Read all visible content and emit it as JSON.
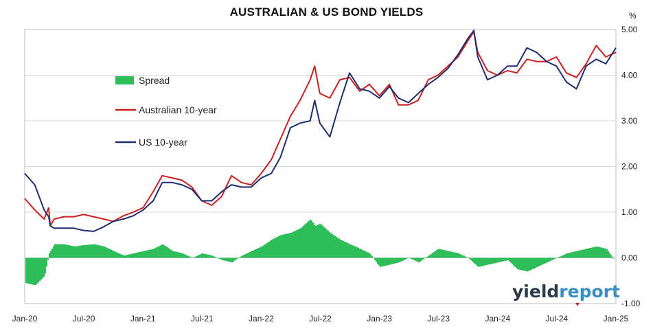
{
  "chart_data": {
    "type": "line",
    "title": "AUSTRALIAN & US BOND YIELDS",
    "y_unit": "%",
    "ylim": [
      -1.0,
      5.0
    ],
    "yticks": [
      "5.00",
      "4.00",
      "3.00",
      "2.00",
      "1.00",
      "0.00",
      "-1.00"
    ],
    "ytick_values": [
      5,
      4,
      3,
      2,
      1,
      0,
      -1
    ],
    "xticks": [
      "Jan-20",
      "Jul-20",
      "Jan-21",
      "Jul-21",
      "Jan-22",
      "Jul-22",
      "Jan-23",
      "Jul-23",
      "Jan-24",
      "Jul-24",
      "Jan-25"
    ],
    "xlim": [
      "2020-01-01",
      "2025-01-01"
    ],
    "grid": "horizontal",
    "legend_position": "upper-left",
    "series": [
      {
        "name": "Spread",
        "style": "bar",
        "color": "#2ebd59",
        "x": [
          "2020-01-01",
          "2020-02-01",
          "2020-03-01",
          "2020-03-15",
          "2020-04-01",
          "2020-05-01",
          "2020-06-01",
          "2020-07-01",
          "2020-08-01",
          "2020-09-01",
          "2020-10-01",
          "2020-11-01",
          "2020-12-01",
          "2021-01-01",
          "2021-02-01",
          "2021-03-01",
          "2021-04-01",
          "2021-05-01",
          "2021-06-01",
          "2021-07-01",
          "2021-08-01",
          "2021-09-01",
          "2021-10-01",
          "2021-11-01",
          "2021-12-01",
          "2022-01-01",
          "2022-02-01",
          "2022-03-01",
          "2022-04-01",
          "2022-05-01",
          "2022-06-01",
          "2022-06-15",
          "2022-07-01",
          "2022-08-01",
          "2022-09-01",
          "2022-10-01",
          "2022-11-01",
          "2022-12-01",
          "2023-01-01",
          "2023-02-01",
          "2023-03-01",
          "2023-04-01",
          "2023-05-01",
          "2023-06-01",
          "2023-07-01",
          "2023-08-01",
          "2023-09-01",
          "2023-10-01",
          "2023-11-01",
          "2023-12-01",
          "2024-01-01",
          "2024-02-01",
          "2024-03-01",
          "2024-04-01",
          "2024-05-01",
          "2024-06-01",
          "2024-07-01",
          "2024-08-01",
          "2024-09-01",
          "2024-10-01",
          "2024-11-01",
          "2024-12-01",
          "2025-01-01"
        ],
        "values": [
          -0.55,
          -0.6,
          -0.4,
          0.1,
          0.3,
          0.3,
          0.25,
          0.28,
          0.3,
          0.25,
          0.15,
          0.05,
          0.1,
          0.15,
          0.2,
          0.3,
          0.15,
          0.1,
          0.0,
          0.1,
          0.05,
          -0.05,
          -0.1,
          0.05,
          0.15,
          0.25,
          0.4,
          0.5,
          0.55,
          0.65,
          0.85,
          0.7,
          0.75,
          0.55,
          0.4,
          0.3,
          0.2,
          0.1,
          -0.2,
          -0.15,
          -0.1,
          0.0,
          -0.1,
          0.05,
          0.2,
          0.15,
          0.1,
          0.0,
          -0.2,
          -0.15,
          -0.1,
          -0.05,
          -0.25,
          -0.3,
          -0.2,
          -0.1,
          0.0,
          0.1,
          0.15,
          0.2,
          0.25,
          0.2,
          -0.1
        ]
      },
      {
        "name": "Australian 10-year",
        "style": "line",
        "color": "#cc1f1f",
        "x": [
          "2020-01-01",
          "2020-02-01",
          "2020-03-01",
          "2020-03-15",
          "2020-03-20",
          "2020-04-01",
          "2020-05-01",
          "2020-06-01",
          "2020-07-01",
          "2020-08-01",
          "2020-09-01",
          "2020-10-01",
          "2020-11-01",
          "2020-12-01",
          "2021-01-01",
          "2021-02-01",
          "2021-03-01",
          "2021-04-01",
          "2021-05-01",
          "2021-06-01",
          "2021-07-01",
          "2021-08-01",
          "2021-09-01",
          "2021-10-01",
          "2021-11-01",
          "2021-12-01",
          "2022-01-01",
          "2022-02-01",
          "2022-03-01",
          "2022-04-01",
          "2022-05-01",
          "2022-06-01",
          "2022-06-15",
          "2022-07-01",
          "2022-08-01",
          "2022-09-01",
          "2022-10-01",
          "2022-11-01",
          "2022-12-01",
          "2023-01-01",
          "2023-02-01",
          "2023-03-01",
          "2023-04-01",
          "2023-05-01",
          "2023-06-01",
          "2023-07-01",
          "2023-08-01",
          "2023-09-01",
          "2023-10-01",
          "2023-10-20",
          "2023-11-01",
          "2023-12-01",
          "2024-01-01",
          "2024-02-01",
          "2024-03-01",
          "2024-04-01",
          "2024-05-01",
          "2024-06-01",
          "2024-07-01",
          "2024-08-01",
          "2024-09-01",
          "2024-10-01",
          "2024-11-01",
          "2024-12-01",
          "2025-01-01"
        ],
        "values": [
          1.3,
          1.05,
          0.85,
          1.1,
          0.7,
          0.85,
          0.9,
          0.9,
          0.95,
          0.9,
          0.85,
          0.8,
          0.92,
          1.0,
          1.1,
          1.45,
          1.8,
          1.75,
          1.7,
          1.55,
          1.25,
          1.15,
          1.35,
          1.8,
          1.65,
          1.6,
          1.85,
          2.15,
          2.6,
          3.1,
          3.45,
          3.9,
          4.2,
          3.6,
          3.5,
          3.9,
          3.95,
          3.65,
          3.8,
          3.55,
          3.8,
          3.35,
          3.35,
          3.45,
          3.9,
          4.0,
          4.2,
          4.4,
          4.75,
          4.95,
          4.5,
          4.1,
          4.0,
          4.1,
          4.05,
          4.35,
          4.3,
          4.3,
          4.4,
          4.05,
          3.95,
          4.25,
          4.65,
          4.4,
          4.5
        ]
      },
      {
        "name": "US 10-year",
        "style": "line",
        "color": "#1f2d6e",
        "x": [
          "2020-01-01",
          "2020-02-01",
          "2020-03-01",
          "2020-03-15",
          "2020-03-20",
          "2020-04-01",
          "2020-05-01",
          "2020-06-01",
          "2020-07-01",
          "2020-08-01",
          "2020-09-01",
          "2020-10-01",
          "2020-11-01",
          "2020-12-01",
          "2021-01-01",
          "2021-02-01",
          "2021-03-01",
          "2021-04-01",
          "2021-05-01",
          "2021-06-01",
          "2021-07-01",
          "2021-08-01",
          "2021-09-01",
          "2021-10-01",
          "2021-11-01",
          "2021-12-01",
          "2022-01-01",
          "2022-02-01",
          "2022-03-01",
          "2022-04-01",
          "2022-05-01",
          "2022-06-01",
          "2022-06-15",
          "2022-07-01",
          "2022-08-01",
          "2022-09-01",
          "2022-10-01",
          "2022-11-01",
          "2022-12-01",
          "2023-01-01",
          "2023-02-01",
          "2023-03-01",
          "2023-04-01",
          "2023-05-01",
          "2023-06-01",
          "2023-07-01",
          "2023-08-01",
          "2023-09-01",
          "2023-10-01",
          "2023-10-20",
          "2023-11-01",
          "2023-12-01",
          "2024-01-01",
          "2024-02-01",
          "2024-03-01",
          "2024-04-01",
          "2024-05-01",
          "2024-06-01",
          "2024-07-01",
          "2024-08-01",
          "2024-09-01",
          "2024-10-01",
          "2024-11-01",
          "2024-12-01",
          "2025-01-01"
        ],
        "values": [
          1.85,
          1.6,
          1.05,
          0.9,
          0.7,
          0.65,
          0.65,
          0.65,
          0.6,
          0.58,
          0.68,
          0.8,
          0.85,
          0.92,
          1.05,
          1.25,
          1.65,
          1.65,
          1.6,
          1.5,
          1.25,
          1.25,
          1.45,
          1.6,
          1.55,
          1.55,
          1.75,
          1.85,
          2.2,
          2.85,
          2.95,
          3.0,
          3.45,
          2.95,
          2.65,
          3.4,
          4.05,
          3.7,
          3.65,
          3.5,
          3.75,
          3.5,
          3.4,
          3.6,
          3.8,
          3.95,
          4.15,
          4.45,
          4.8,
          4.98,
          4.4,
          3.9,
          4.0,
          4.2,
          4.2,
          4.6,
          4.5,
          4.3,
          4.2,
          3.85,
          3.7,
          4.2,
          4.35,
          4.25,
          4.6
        ]
      }
    ],
    "watermark": {
      "part1": "yield",
      "part2": "report",
      "color1": "#2b3a4a",
      "color2": "#3a8fbf"
    }
  }
}
